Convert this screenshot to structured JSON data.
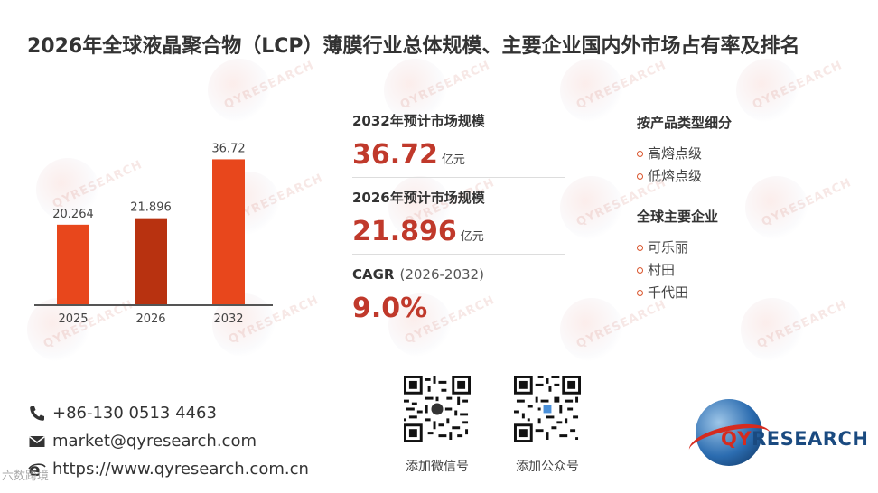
{
  "title": "2026年全球液晶聚合物（LCP）薄膜行业总体规模、主要企业国内外市场占有率及排名",
  "watermark_text": "QYRESEARCH",
  "chart_data": {
    "type": "bar",
    "categories": [
      "2025",
      "2026",
      "2032"
    ],
    "values": [
      20.264,
      21.896,
      36.72
    ],
    "value_labels": [
      "20.264",
      "21.896",
      "36.72"
    ],
    "colors": [
      "#e8471c",
      "#b83210",
      "#e8471c"
    ],
    "ylim": [
      0,
      40
    ]
  },
  "metrics": {
    "size_2032": {
      "label": "2032年预计市场规模",
      "value": "36.72",
      "unit": "亿元"
    },
    "size_2026": {
      "label": "2026年预计市场规模",
      "value": "21.896",
      "unit": "亿元"
    },
    "cagr": {
      "label": "CAGR",
      "period": "(2026-2032)",
      "value": "9.0%"
    }
  },
  "segments": {
    "product_type": {
      "heading": "按产品类型细分",
      "items": [
        "高熔点级",
        "低熔点级"
      ]
    },
    "companies": {
      "heading": "全球主要企业",
      "items": [
        "可乐丽",
        "村田",
        "千代田"
      ]
    }
  },
  "contact": {
    "phone": "+86-130 0513 4463",
    "email": "market@qyresearch.com",
    "website": "https://www.qyresearch.com.cn"
  },
  "qr": {
    "wechat_caption": "添加微信号",
    "official_caption": "添加公众号"
  },
  "logo": {
    "q": "QY",
    "rest": "RESEARCH"
  },
  "credit": "六数跨境",
  "accent_color": "#c0392b"
}
